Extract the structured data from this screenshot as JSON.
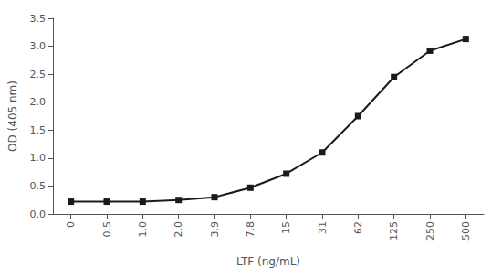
{
  "chart_data": {
    "type": "line",
    "categories": [
      "0",
      "0.5",
      "1.0",
      "2.0",
      "3.9",
      "7.8",
      "15",
      "31",
      "62",
      "125",
      "250",
      "500"
    ],
    "values": [
      0.22,
      0.22,
      0.22,
      0.25,
      0.3,
      0.47,
      0.72,
      1.1,
      1.75,
      2.45,
      2.92,
      3.13
    ],
    "color": "#1a1a1a",
    "marker": "square",
    "xlabel": "LTF (ng/mL)",
    "ylabel": "OD (405 nm)",
    "ylim": [
      0,
      3.5
    ],
    "yticks": [
      {
        "value": 0.0,
        "label": "0.0"
      },
      0.5,
      {
        "value": 1.0,
        "label": "1.0"
      },
      1.5,
      {
        "value": 2.0,
        "label": "2.0"
      },
      2.5,
      {
        "value": 3.0,
        "label": "3.0"
      },
      3.5
    ],
    "grid": false
  }
}
